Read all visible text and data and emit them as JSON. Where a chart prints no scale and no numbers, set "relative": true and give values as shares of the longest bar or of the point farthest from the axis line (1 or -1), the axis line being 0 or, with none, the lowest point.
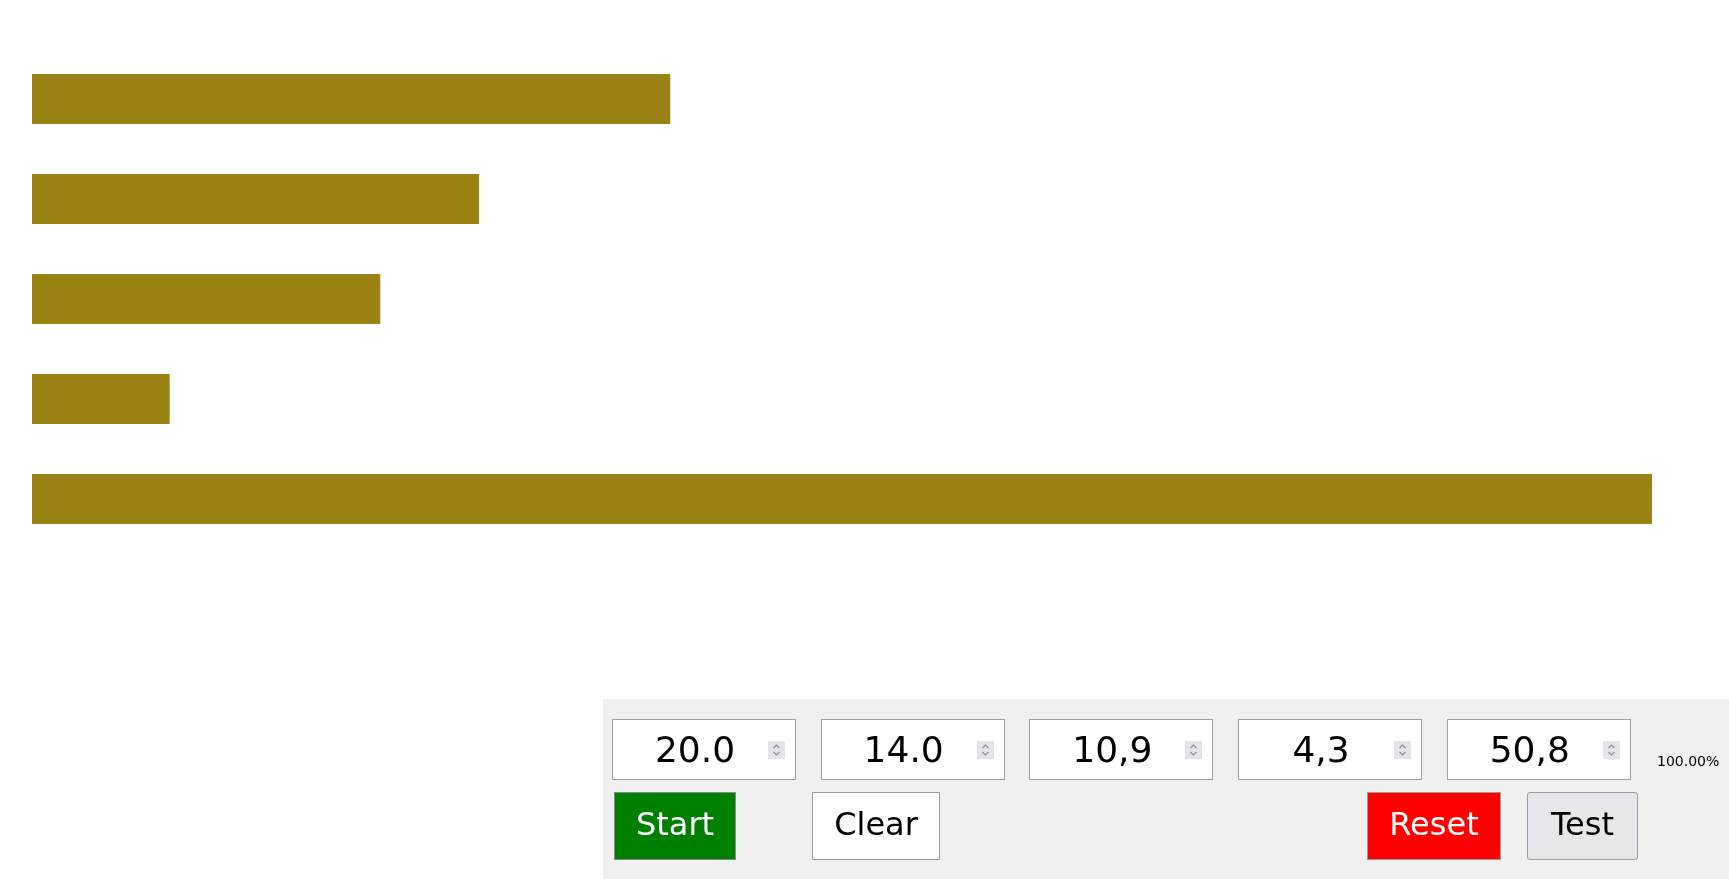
{
  "chart_data": [
    {
      "type": "bar",
      "orientation": "horizontal",
      "relative": true,
      "categories": [
        null,
        null,
        null,
        null,
        null
      ],
      "values": [
        0.394,
        0.276,
        0.215,
        0.085,
        1
      ],
      "color": "#9a8214"
    },
    {
      "type": "other",
      "annotations": [
        "20.0",
        "14.0",
        "10,9",
        "4,3",
        "50,8",
        "100.00%",
        "Start",
        "Clear",
        "Reset",
        "Test"
      ]
    }
  ]
}
